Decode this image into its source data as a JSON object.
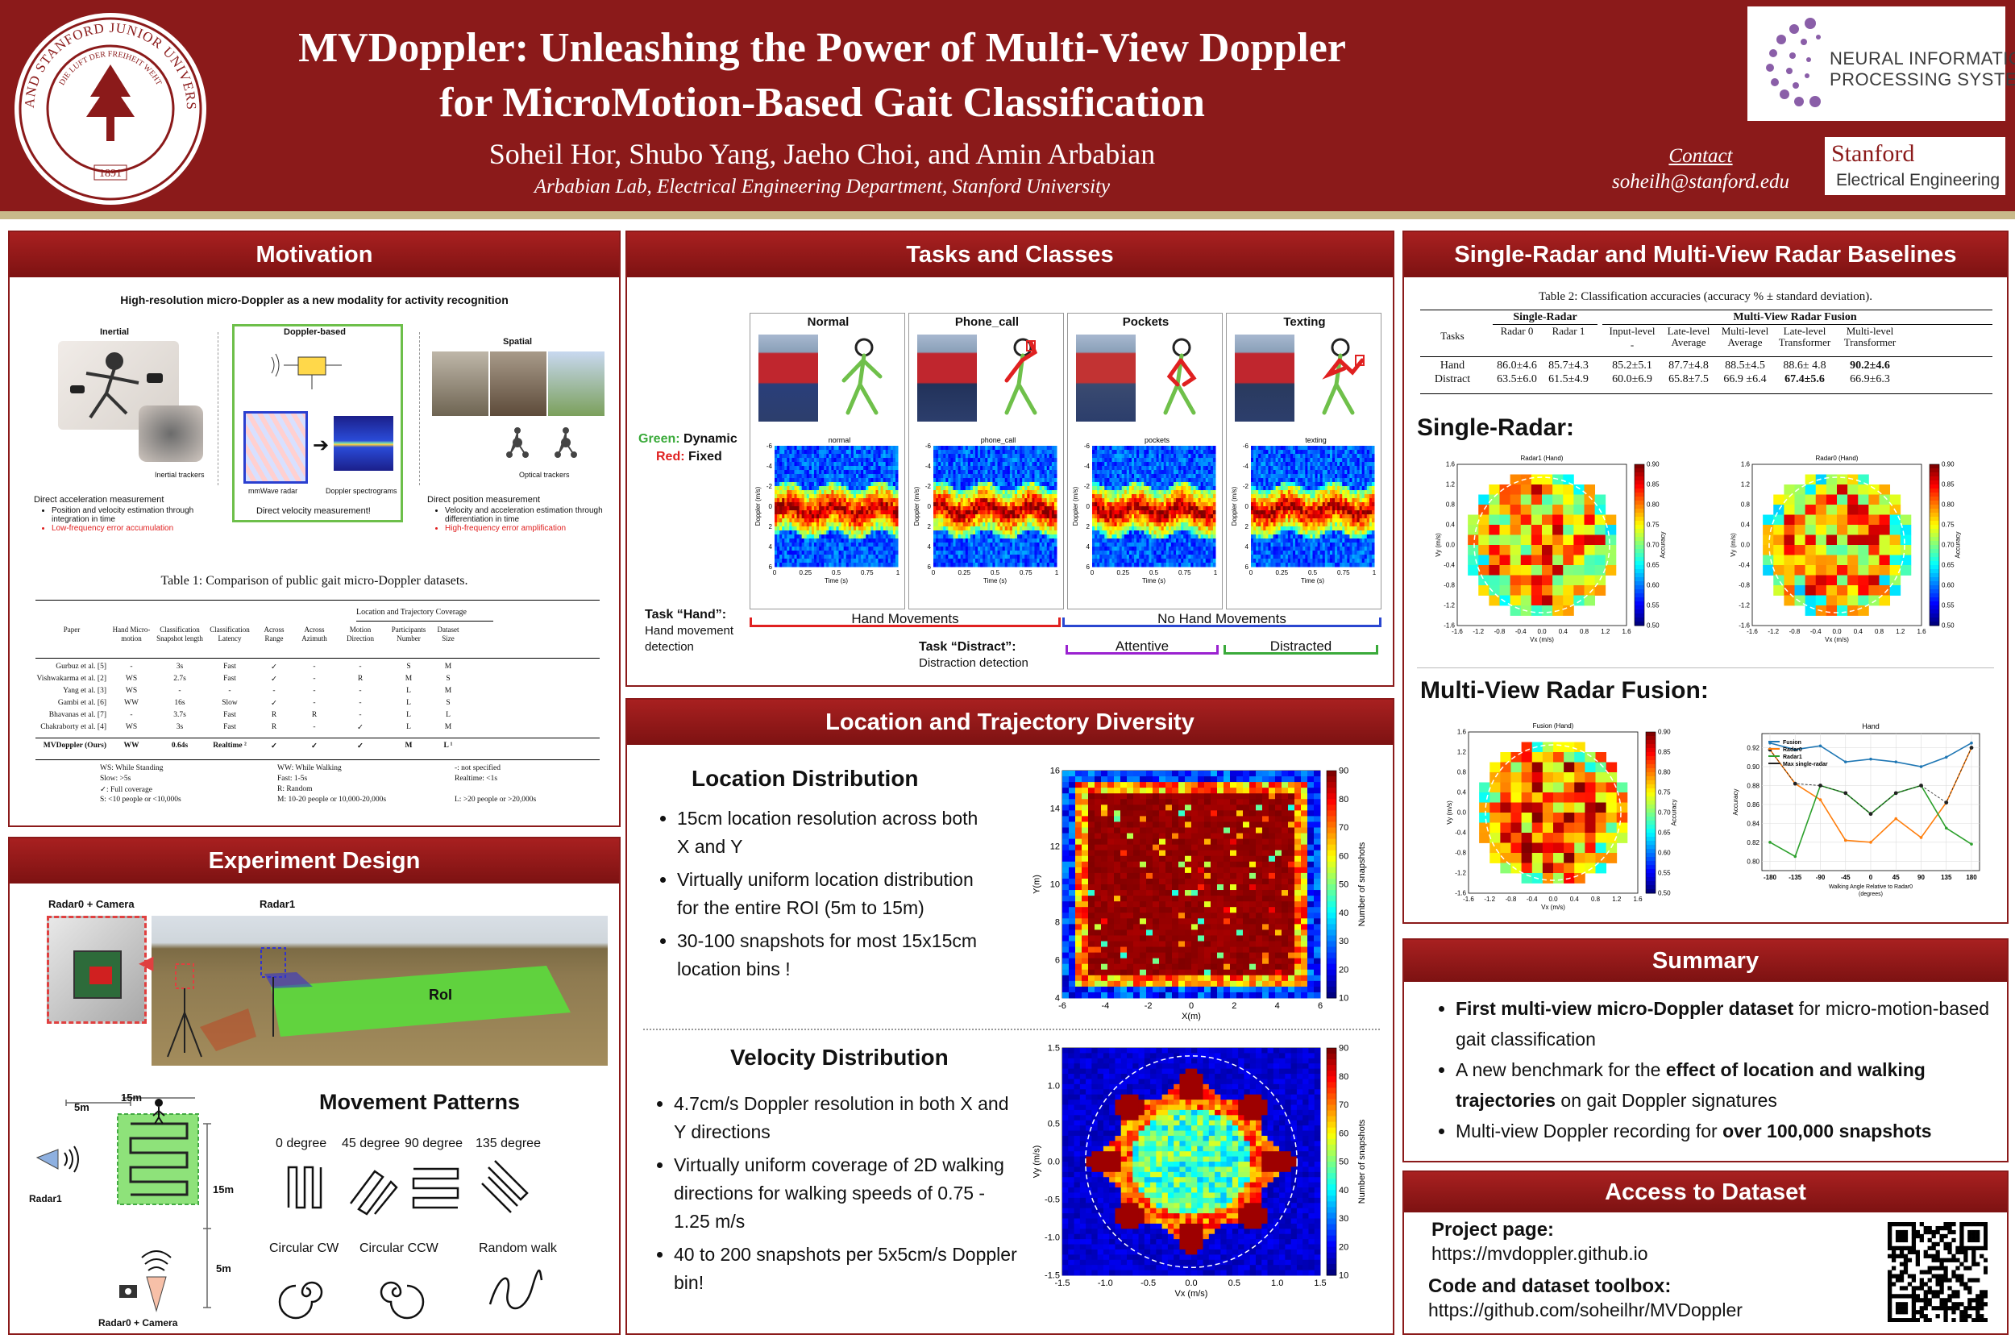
{
  "header": {
    "title_line1": "MVDoppler: Unleashing the Power of Multi-View Doppler",
    "title_line2": "for MicroMotion-Based Gait Classification",
    "authors": "Soheil Hor, Shubo Yang, Jaeho Choi, and Amin Arbabian",
    "affiliation": "Arbabian Lab, Electrical Engineering Department, Stanford University",
    "contact_label": "Contact",
    "contact_email": "soheilh@stanford.edu",
    "seal_text_top": "LELAND STANFORD JUNIOR UNIVERSITY",
    "seal_text_motto": "DIE LUFT DER FREIHEIT WEHT",
    "seal_year": "1891",
    "neurips_line1": "NEURAL INFORMATION",
    "neurips_line2": "PROCESSING SYSTEMS",
    "stanford_ee_line1": "Stanford",
    "stanford_ee_line2": "Electrical Engineering"
  },
  "motivation": {
    "title": "Motivation",
    "fig_caption": "High-resolution micro-Doppler as a new modality for activity recognition",
    "col_inertial": "Inertial",
    "col_doppler": "Doppler-based",
    "col_spatial": "Spatial",
    "inertial_trackers": "Inertial trackers",
    "mmwave_radar": "mmWave radar",
    "doppler_spectrograms": "Doppler spectrograms",
    "optical_trackers": "Optical trackers",
    "direct_acc": "Direct acceleration measurement",
    "acc_b1": "Position and velocity estimation through integration in time",
    "acc_b2": "Low-frequency error accumulation",
    "direct_vel": "Direct velocity measurement!",
    "direct_pos": "Direct position measurement",
    "pos_b1": "Velocity and acceleration estimation through differentiation in time",
    "pos_b2": "High-frequency error amplification",
    "table_caption": "Table 1: Comparison of public gait micro-Doppler datasets.",
    "table_group": "Location and Trajectory Coverage",
    "table_headers": [
      "Paper",
      "Hand Micro-motion",
      "Classification Snapshot length",
      "Classification Latency",
      "Across Range",
      "Across Azimuth",
      "Motion Direction",
      "Participants Number",
      "Dataset Size"
    ],
    "table_rows": [
      [
        "Gurbuz et al. [5]",
        "-",
        "3s",
        "Fast",
        "✓",
        "-",
        "-",
        "S",
        "M"
      ],
      [
        "Vishwakarma et al. [2]",
        "WS",
        "2.7s",
        "Fast",
        "✓",
        "-",
        "R",
        "M",
        "S"
      ],
      [
        "Yang et al. [3]",
        "WS",
        "-",
        "-",
        "-",
        "-",
        "-",
        "L",
        "M"
      ],
      [
        "Gambi et al. [6]",
        "WW",
        "16s",
        "Slow",
        "✓",
        "-",
        "-",
        "L",
        "S"
      ],
      [
        "Bhavanas et al. [7]",
        "-",
        "3.7s",
        "Fast",
        "R",
        "R",
        "-",
        "L",
        "L"
      ],
      [
        "Chakraborty et al. [4]",
        "WS",
        "3s",
        "Fast",
        "R",
        "-",
        "✓",
        "L",
        "M"
      ]
    ],
    "table_ours": [
      "MVDoppler (Ours)",
      "WW",
      "0.64s",
      "Realtime ²",
      "✓",
      "✓",
      "✓",
      "M",
      "L ¹"
    ],
    "legend": [
      [
        "WS: While Standing",
        "WW: While Walking",
        "-: not specified"
      ],
      [
        "Slow: >5s",
        "Fast: 1-5s",
        "Realtime: <1s"
      ],
      [
        "✓: Full coverage",
        "R: Random",
        ""
      ],
      [
        "S: <10 people or <10,000s",
        "M: 10-20 people or 10,000-20,000s",
        "L: >20 people or >20,000s"
      ]
    ]
  },
  "experiment": {
    "title": "Experiment Design",
    "radar0_camera": "Radar0 + Camera",
    "radar1": "Radar1",
    "roi": "RoI",
    "dim_15m_top": "15m",
    "dim_5m_top": "5m",
    "dim_15m_side": "15m",
    "dim_5m_side": "5m",
    "radar1_label": "Radar1",
    "radar0_label": "Radar0 + Camera",
    "movement_title": "Movement Patterns",
    "patterns": [
      "0 degree",
      "45 degree",
      "90 degree",
      "135 degree",
      "Circular CW",
      "Circular CCW",
      "Random walk"
    ]
  },
  "tasks": {
    "title": "Tasks and Classes",
    "classes": [
      "Normal",
      "Phone_call",
      "Pockets",
      "Texting"
    ],
    "spec_titles": [
      "normal",
      "phone_call",
      "pockets",
      "texting"
    ],
    "legend_green": "Green:",
    "legend_green_val": "Dynamic",
    "legend_red": "Red:",
    "legend_red_val": "Fixed",
    "ylabel": "Doppler (m/s)",
    "xlabel": "Time (s)",
    "y_ticks": [
      "-6",
      "-4",
      "-2",
      "0",
      "2",
      "4",
      "6"
    ],
    "x_ticks": [
      "0",
      "0.25",
      "0.5",
      "0.75",
      "1"
    ],
    "task_hand": "Task “Hand”:",
    "task_hand_desc1": "Hand movement",
    "task_hand_desc2": "detection",
    "hand_movements": "Hand Movements",
    "no_hand_movements": "No Hand Movements",
    "task_distract": "Task “Distract”:",
    "task_distract_desc": "Distraction detection",
    "attentive": "Attentive",
    "distracted": "Distracted"
  },
  "location": {
    "title": "Location and Trajectory Diversity",
    "loc_subtitle": "Location Distribution",
    "loc_bullets": [
      "15cm location resolution across both X and Y",
      "Virtually uniform location distribution for the entire ROI (5m to 15m)",
      "30-100 snapshots for most 15x15cm location bins !"
    ],
    "vel_subtitle": "Velocity Distribution",
    "vel_bullets": [
      "4.7cm/s Doppler resolution in both X and Y directions",
      "Virtually uniform coverage of 2D walking directions for walking speeds of 0.75 - 1.25 m/s",
      "40 to 200 snapshots per 5x5cm/s Doppler bin!"
    ],
    "loc_xlabel": "X(m)",
    "loc_ylabel": "Y(m)",
    "loc_xticks": [
      "-6",
      "-4",
      "-2",
      "0",
      "2",
      "4",
      "6"
    ],
    "loc_yticks": [
      "4",
      "6",
      "8",
      "10",
      "12",
      "14",
      "16"
    ],
    "cbar_label": "Number of snapshots",
    "cbar_ticks": [
      "10",
      "20",
      "30",
      "40",
      "50",
      "60",
      "70",
      "80",
      "90"
    ],
    "vel_xlabel": "Vx (m/s)",
    "vel_ylabel": "Vy (m/s)",
    "vel_xticks": [
      "-1.5",
      "-1.0",
      "-0.5",
      "0.0",
      "0.5",
      "1.0",
      "1.5"
    ],
    "vel_yticks": [
      "-1.5",
      "-1.0",
      "-0.5",
      "0.0",
      "0.5",
      "1.0",
      "1.5"
    ]
  },
  "baselines": {
    "title": "Single-Radar and Multi-View Radar Baselines",
    "table_caption": "Table 2: Classification accuracies (accuracy % ± standard deviation).",
    "group_single": "Single-Radar",
    "group_multi": "Multi-View Radar Fusion",
    "headers": [
      "Tasks",
      "Radar 0",
      "Radar 1",
      "Input-level",
      "Late-level Average",
      "Multi-level Average",
      "Late-level Transformer",
      "Multi-level Transformer"
    ],
    "input_level_sub": "-",
    "rows": [
      [
        "Hand",
        "86.0±4.6",
        "85.7±4.3",
        "85.2±5.1",
        "87.7±4.8",
        "88.5±4.5",
        "88.6± 4.8",
        "90.2±4.6"
      ],
      [
        "Distract",
        "63.5±6.0",
        "61.5±4.9",
        "60.0±6.9",
        "65.8±7.5",
        "66.9 ±6.4",
        "67.4±5.6",
        "66.9±6.3"
      ]
    ],
    "single_label": "Single-Radar:",
    "multi_label": "Multi-View Radar Fusion:",
    "heat1_title": "Radar1 (Hand)",
    "heat2_title": "Radar0 (Hand)",
    "heat3_title": "Fusion (Hand)",
    "acc_label": "Accuracy",
    "acc_ticks": [
      "0.90",
      "0.85",
      "0.80",
      "0.75",
      "0.70",
      "0.65",
      "0.60",
      "0.55",
      "0.50"
    ],
    "vx_label": "Vx (m/s)",
    "vy_label": "Vy (m/s)",
    "v_ticks": [
      "-1.6",
      "-1.2",
      "-0.8",
      "-0.4",
      "0.0",
      "0.4",
      "0.8",
      "1.2",
      "1.6"
    ],
    "line_title": "Hand",
    "line_xlabel": "Walking Angle Relative to Radar0",
    "line_xlabel2": "(degrees)",
    "line_ylabel": "Accuracy"
  },
  "chart_data": {
    "type": "line",
    "title": "Hand",
    "xlabel": "Walking Angle Relative to Radar0 (degrees)",
    "ylabel": "Accuracy",
    "categories": [
      "-180",
      "-135",
      "-90",
      "-45",
      "0",
      "45",
      "90",
      "135",
      "180"
    ],
    "ylim": [
      0.79,
      0.935
    ],
    "series": [
      {
        "name": "Fusion",
        "color": "#1f77b4",
        "values": [
          0.925,
          0.918,
          0.922,
          0.905,
          0.908,
          0.905,
          0.9,
          0.91,
          0.925
        ]
      },
      {
        "name": "Radar0",
        "color": "#ff7f0e",
        "values": [
          0.918,
          0.882,
          0.865,
          0.822,
          0.82,
          0.845,
          0.825,
          0.862,
          0.92
        ]
      },
      {
        "name": "Radar1",
        "color": "#2ca02c",
        "values": [
          0.82,
          0.805,
          0.88,
          0.872,
          0.85,
          0.872,
          0.88,
          0.835,
          0.818
        ]
      },
      {
        "name": "Max single-radar",
        "color": "#222222",
        "values": [
          0.918,
          0.882,
          0.88,
          0.872,
          0.85,
          0.872,
          0.88,
          0.862,
          0.92
        ]
      }
    ],
    "legend": "top-left",
    "y_ticks": [
      "0.80",
      "0.82",
      "0.84",
      "0.86",
      "0.88",
      "0.90",
      "0.92"
    ]
  },
  "summary": {
    "title": "Summary",
    "b1_bold": "First multi-view micro-Doppler dataset",
    "b1_rest": " for micro-motion-based gait classification",
    "b2_pre": "A new benchmark for the ",
    "b2_bold": "effect of location and walking trajectories",
    "b2_rest": " on gait Doppler signatures",
    "b3_pre": "Multi-view Doppler recording for ",
    "b3_bold": "over 100,000 snapshots"
  },
  "access": {
    "title": "Access to Dataset",
    "project_label": "Project page:",
    "project_url": "https://mvdoppler.github.io",
    "code_label": "Code and dataset toolbox:",
    "code_url": "https://github.com/soheilhr/MVDoppler"
  }
}
